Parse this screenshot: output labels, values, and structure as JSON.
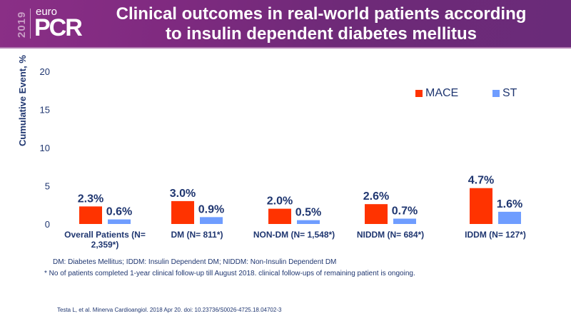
{
  "header": {
    "logo_year": "2019",
    "logo_top": "euro",
    "logo_main": "PCR",
    "title_line1": "Clinical outcomes in real-world patients according",
    "title_line2": "to insulin dependent diabetes mellitus"
  },
  "colors": {
    "mace": "#ff3300",
    "st": "#6f9dff",
    "text": "#1f3670",
    "header": "#7a2c7e"
  },
  "chart_data": {
    "type": "bar",
    "title": "",
    "xlabel": "",
    "ylabel": "Cumulative Event, %",
    "ylim": [
      0,
      20
    ],
    "yticks": [
      0,
      5,
      10,
      15,
      20
    ],
    "grid": false,
    "legend_position": "top-right",
    "categories": [
      [
        "Overall Patients (N=",
        "2,359*)"
      ],
      [
        "DM (N= 811*)"
      ],
      [
        "NON-DM (N= 1,548*)"
      ],
      [
        "NIDDM (N= 684*)"
      ],
      [
        "IDDM (N= 127*)"
      ]
    ],
    "series": [
      {
        "name": "MACE",
        "values": [
          2.3,
          3.0,
          2.0,
          2.6,
          4.7
        ],
        "labels": [
          "2.3%",
          "3.0%",
          "2.0%",
          "2.6%",
          "4.7%"
        ]
      },
      {
        "name": "ST",
        "values": [
          0.6,
          0.9,
          0.5,
          0.7,
          1.6
        ],
        "labels": [
          "0.6%",
          "0.9%",
          "0.5%",
          "0.7%",
          "1.6%"
        ]
      }
    ]
  },
  "notes": {
    "abbreviations": "DM: Diabetes Mellitus;  IDDM: Insulin Dependent DM; NIDDM: Non-Insulin Dependent DM",
    "footnote": "* No of patients completed 1-year clinical follow-up till August 2018. clinical follow-ups of remaining patient is ongoing.",
    "citation": "Testa L, et al. Minerva Cardioangiol. 2018 Apr 20. doi: 10.23736/S0026-4725.18.04702-3"
  }
}
